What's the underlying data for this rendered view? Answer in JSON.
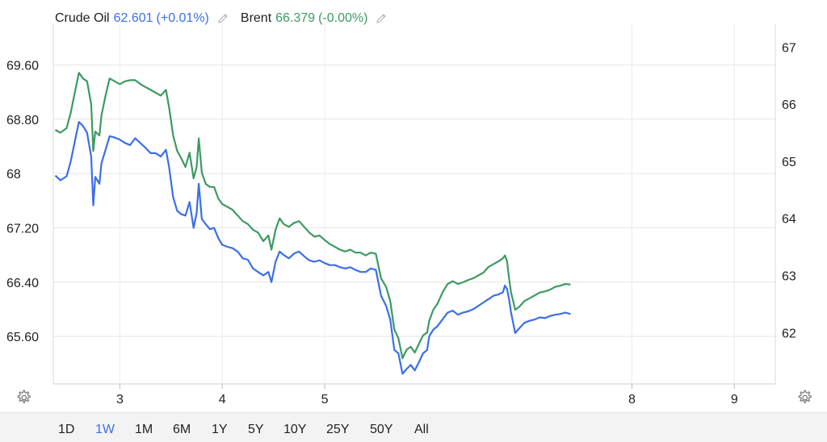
{
  "legend": [
    {
      "name": "Crude Oil",
      "value": "62.601",
      "change": "(+0.01%)",
      "color": "#3b6fe8"
    },
    {
      "name": "Brent",
      "value": "66.379",
      "change": "(-0.00%)",
      "color": "#3d9a62"
    }
  ],
  "icons": {
    "edit": "pencil-icon",
    "settings": "gear-icon"
  },
  "range_buttons": [
    "1D",
    "1W",
    "1M",
    "6M",
    "1Y",
    "5Y",
    "10Y",
    "25Y",
    "50Y",
    "All"
  ],
  "active_range": "1W",
  "chart_data": {
    "type": "line",
    "grid": true,
    "left_axis": {
      "ticks": [
        "69.60",
        "68.80",
        "68",
        "67.20",
        "66.40",
        "65.60"
      ],
      "values": [
        69.6,
        68.8,
        68.0,
        67.2,
        66.4,
        65.6
      ],
      "range": [
        64.9,
        70.2
      ]
    },
    "right_axis": {
      "ticks": [
        "67",
        "66",
        "65",
        "64",
        "63",
        "62"
      ],
      "values": [
        67,
        66,
        65,
        64,
        63,
        62
      ],
      "range": [
        61.1,
        67.4
      ]
    },
    "x_ticks": [
      {
        "label": "3",
        "x": 3.0
      },
      {
        "label": "4",
        "x": 4.0
      },
      {
        "label": "5",
        "x": 5.0
      },
      {
        "label": "8",
        "x": 8.0
      },
      {
        "label": "9",
        "x": 9.0
      }
    ],
    "x_range": [
      2.35,
      9.4
    ],
    "series": [
      {
        "name": "Crude Oil",
        "axis": "left",
        "color": "#3b6fe8",
        "points": [
          [
            2.37,
            67.97
          ],
          [
            2.42,
            67.9
          ],
          [
            2.48,
            67.96
          ],
          [
            2.52,
            68.18
          ],
          [
            2.56,
            68.47
          ],
          [
            2.6,
            68.76
          ],
          [
            2.64,
            68.7
          ],
          [
            2.68,
            68.6
          ],
          [
            2.72,
            68.25
          ],
          [
            2.74,
            67.53
          ],
          [
            2.76,
            67.95
          ],
          [
            2.8,
            67.85
          ],
          [
            2.82,
            68.15
          ],
          [
            2.86,
            68.35
          ],
          [
            2.9,
            68.55
          ],
          [
            2.95,
            68.53
          ],
          [
            3.0,
            68.5
          ],
          [
            3.05,
            68.45
          ],
          [
            3.1,
            68.42
          ],
          [
            3.15,
            68.52
          ],
          [
            3.2,
            68.45
          ],
          [
            3.25,
            68.38
          ],
          [
            3.3,
            68.3
          ],
          [
            3.35,
            68.3
          ],
          [
            3.4,
            68.25
          ],
          [
            3.45,
            68.35
          ],
          [
            3.48,
            68.1
          ],
          [
            3.52,
            67.65
          ],
          [
            3.56,
            67.45
          ],
          [
            3.6,
            67.4
          ],
          [
            3.64,
            67.38
          ],
          [
            3.68,
            67.58
          ],
          [
            3.72,
            67.2
          ],
          [
            3.75,
            67.42
          ],
          [
            3.77,
            67.85
          ],
          [
            3.8,
            67.33
          ],
          [
            3.84,
            67.25
          ],
          [
            3.88,
            67.18
          ],
          [
            3.92,
            67.2
          ],
          [
            3.96,
            67.05
          ],
          [
            4.0,
            66.95
          ],
          [
            4.05,
            66.92
          ],
          [
            4.1,
            66.9
          ],
          [
            4.15,
            66.85
          ],
          [
            4.2,
            66.75
          ],
          [
            4.25,
            66.73
          ],
          [
            4.3,
            66.6
          ],
          [
            4.35,
            66.55
          ],
          [
            4.4,
            66.5
          ],
          [
            4.45,
            66.55
          ],
          [
            4.48,
            66.4
          ],
          [
            4.52,
            66.7
          ],
          [
            4.56,
            66.85
          ],
          [
            4.6,
            66.8
          ],
          [
            4.65,
            66.75
          ],
          [
            4.7,
            66.82
          ],
          [
            4.75,
            66.85
          ],
          [
            4.8,
            66.78
          ],
          [
            4.85,
            66.72
          ],
          [
            4.9,
            66.7
          ],
          [
            4.95,
            66.72
          ],
          [
            5.0,
            66.68
          ],
          [
            5.05,
            66.65
          ],
          [
            5.1,
            66.65
          ],
          [
            5.15,
            66.62
          ],
          [
            5.2,
            66.6
          ],
          [
            5.25,
            66.62
          ],
          [
            5.3,
            66.58
          ],
          [
            5.35,
            66.55
          ],
          [
            5.4,
            66.55
          ],
          [
            5.45,
            66.6
          ],
          [
            5.5,
            66.58
          ],
          [
            5.55,
            66.2
          ],
          [
            5.6,
            66.05
          ],
          [
            5.64,
            65.85
          ],
          [
            5.68,
            65.4
          ],
          [
            5.72,
            65.35
          ],
          [
            5.76,
            65.05
          ],
          [
            5.8,
            65.12
          ],
          [
            5.84,
            65.18
          ],
          [
            5.88,
            65.1
          ],
          [
            5.92,
            65.22
          ],
          [
            5.96,
            65.35
          ],
          [
            6.0,
            65.4
          ],
          [
            6.02,
            65.6
          ],
          [
            6.06,
            65.7
          ],
          [
            6.1,
            65.75
          ],
          [
            6.15,
            65.85
          ],
          [
            6.2,
            65.95
          ],
          [
            6.25,
            65.98
          ],
          [
            6.3,
            65.92
          ],
          [
            6.35,
            65.95
          ],
          [
            6.4,
            65.97
          ],
          [
            6.45,
            66.0
          ],
          [
            6.5,
            66.05
          ],
          [
            6.55,
            66.1
          ],
          [
            6.6,
            66.15
          ],
          [
            6.65,
            66.2
          ],
          [
            6.7,
            66.22
          ],
          [
            6.74,
            66.25
          ],
          [
            6.76,
            66.35
          ],
          [
            6.78,
            66.3
          ],
          [
            6.8,
            66.15
          ],
          [
            6.82,
            65.95
          ],
          [
            6.84,
            65.8
          ],
          [
            6.86,
            65.65
          ],
          [
            6.9,
            65.72
          ],
          [
            6.95,
            65.8
          ],
          [
            7.0,
            65.83
          ],
          [
            7.05,
            65.85
          ],
          [
            7.1,
            65.88
          ],
          [
            7.15,
            65.87
          ],
          [
            7.2,
            65.9
          ],
          [
            7.25,
            65.92
          ],
          [
            7.3,
            65.93
          ],
          [
            7.35,
            65.95
          ],
          [
            7.4,
            65.93
          ]
        ]
      },
      {
        "name": "Brent",
        "axis": "right",
        "color": "#3d9a62",
        "points": [
          [
            2.37,
            65.55
          ],
          [
            2.42,
            65.5
          ],
          [
            2.48,
            65.58
          ],
          [
            2.52,
            65.85
          ],
          [
            2.56,
            66.2
          ],
          [
            2.6,
            66.55
          ],
          [
            2.64,
            66.45
          ],
          [
            2.68,
            66.4
          ],
          [
            2.72,
            66.0
          ],
          [
            2.74,
            65.18
          ],
          [
            2.76,
            65.52
          ],
          [
            2.8,
            65.45
          ],
          [
            2.82,
            65.8
          ],
          [
            2.86,
            66.15
          ],
          [
            2.9,
            66.45
          ],
          [
            2.95,
            66.4
          ],
          [
            3.0,
            66.35
          ],
          [
            3.05,
            66.4
          ],
          [
            3.1,
            66.42
          ],
          [
            3.15,
            66.42
          ],
          [
            3.2,
            66.35
          ],
          [
            3.25,
            66.3
          ],
          [
            3.3,
            66.25
          ],
          [
            3.35,
            66.2
          ],
          [
            3.4,
            66.15
          ],
          [
            3.45,
            66.25
          ],
          [
            3.48,
            65.95
          ],
          [
            3.52,
            65.45
          ],
          [
            3.56,
            65.18
          ],
          [
            3.6,
            65.05
          ],
          [
            3.64,
            64.9
          ],
          [
            3.68,
            65.15
          ],
          [
            3.72,
            64.7
          ],
          [
            3.75,
            64.9
          ],
          [
            3.77,
            65.4
          ],
          [
            3.8,
            64.8
          ],
          [
            3.84,
            64.6
          ],
          [
            3.88,
            64.55
          ],
          [
            3.92,
            64.55
          ],
          [
            3.96,
            64.35
          ],
          [
            4.0,
            64.25
          ],
          [
            4.05,
            64.2
          ],
          [
            4.1,
            64.15
          ],
          [
            4.15,
            64.05
          ],
          [
            4.2,
            63.95
          ],
          [
            4.25,
            63.9
          ],
          [
            4.3,
            63.8
          ],
          [
            4.35,
            63.75
          ],
          [
            4.4,
            63.6
          ],
          [
            4.45,
            63.7
          ],
          [
            4.48,
            63.45
          ],
          [
            4.52,
            63.8
          ],
          [
            4.56,
            64.0
          ],
          [
            4.6,
            63.9
          ],
          [
            4.65,
            63.85
          ],
          [
            4.7,
            63.92
          ],
          [
            4.75,
            63.95
          ],
          [
            4.8,
            63.85
          ],
          [
            4.85,
            63.75
          ],
          [
            4.9,
            63.68
          ],
          [
            4.95,
            63.7
          ],
          [
            5.0,
            63.62
          ],
          [
            5.05,
            63.55
          ],
          [
            5.1,
            63.5
          ],
          [
            5.15,
            63.45
          ],
          [
            5.2,
            63.42
          ],
          [
            5.25,
            63.45
          ],
          [
            5.3,
            63.4
          ],
          [
            5.35,
            63.4
          ],
          [
            5.4,
            63.35
          ],
          [
            5.45,
            63.4
          ],
          [
            5.5,
            63.38
          ],
          [
            5.55,
            62.95
          ],
          [
            5.6,
            62.8
          ],
          [
            5.64,
            62.55
          ],
          [
            5.68,
            62.05
          ],
          [
            5.72,
            61.9
          ],
          [
            5.76,
            61.55
          ],
          [
            5.8,
            61.7
          ],
          [
            5.84,
            61.75
          ],
          [
            5.88,
            61.65
          ],
          [
            5.92,
            61.8
          ],
          [
            5.96,
            61.95
          ],
          [
            6.0,
            62.0
          ],
          [
            6.02,
            62.2
          ],
          [
            6.06,
            62.4
          ],
          [
            6.1,
            62.5
          ],
          [
            6.15,
            62.7
          ],
          [
            6.2,
            62.85
          ],
          [
            6.25,
            62.9
          ],
          [
            6.3,
            62.85
          ],
          [
            6.35,
            62.88
          ],
          [
            6.4,
            62.92
          ],
          [
            6.45,
            62.95
          ],
          [
            6.5,
            63.0
          ],
          [
            6.55,
            63.05
          ],
          [
            6.6,
            63.15
          ],
          [
            6.65,
            63.2
          ],
          [
            6.7,
            63.25
          ],
          [
            6.74,
            63.3
          ],
          [
            6.76,
            63.35
          ],
          [
            6.78,
            63.25
          ],
          [
            6.8,
            62.95
          ],
          [
            6.82,
            62.7
          ],
          [
            6.84,
            62.55
          ],
          [
            6.86,
            62.4
          ],
          [
            6.9,
            62.45
          ],
          [
            6.95,
            62.55
          ],
          [
            7.0,
            62.6
          ],
          [
            7.05,
            62.65
          ],
          [
            7.1,
            62.7
          ],
          [
            7.15,
            62.72
          ],
          [
            7.2,
            62.75
          ],
          [
            7.25,
            62.8
          ],
          [
            7.3,
            62.82
          ],
          [
            7.35,
            62.85
          ],
          [
            7.4,
            62.84
          ]
        ]
      }
    ]
  }
}
